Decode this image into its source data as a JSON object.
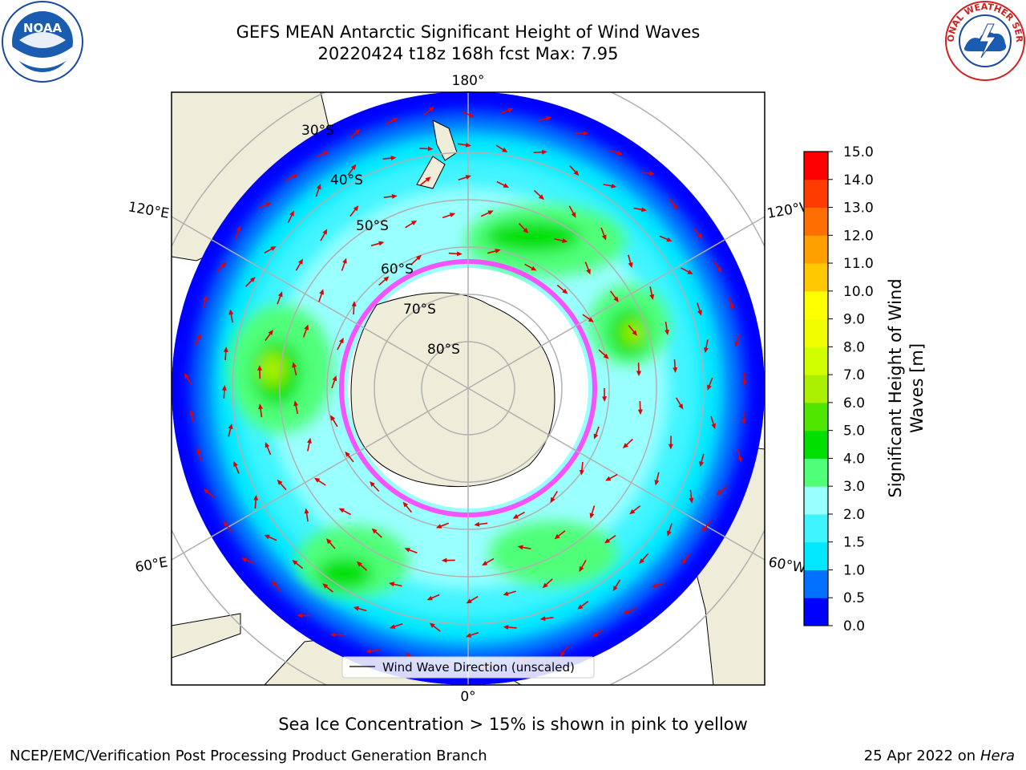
{
  "title_line1": "GEFS MEAN Antarctic Significant Height of Wind Waves",
  "title_line2": "20220424 t18z 168h fcst   Max: 7.95",
  "map": {
    "lon_labels": {
      "top": "180°",
      "bottom": "0°",
      "upper_left": "120°E",
      "upper_right": "120°W",
      "lower_left": "60°E",
      "lower_right": "60°W"
    },
    "lat_labels": [
      "30°S",
      "40°S",
      "50°S",
      "60°S",
      "70°S",
      "80°S"
    ],
    "legend_label": "Wind Wave Direction (unscaled)"
  },
  "colorbar": {
    "label_line1": "Significant Height of Wind",
    "label_line2": "Waves [m]",
    "ticks": [
      "0.0",
      "0.5",
      "1.0",
      "1.5",
      "2.0",
      "3.0",
      "4.0",
      "5.0",
      "6.0",
      "7.0",
      "8.0",
      "9.0",
      "10.0",
      "11.0",
      "12.0",
      "13.0",
      "14.0",
      "15.0"
    ],
    "colors": [
      "#0000ff",
      "#0070ff",
      "#00e8ff",
      "#40f4ff",
      "#99ffff",
      "#50ff78",
      "#00e000",
      "#50e600",
      "#aaf000",
      "#d2ff00",
      "#f0ff00",
      "#ffff00",
      "#ffc800",
      "#ffa000",
      "#ff6e00",
      "#ff3c00",
      "#ff0000"
    ]
  },
  "caption": "Sea Ice Concentration > 15% is shown in pink to yellow",
  "credit": "NCEP/EMC/Verification Post Processing Product Generation Branch",
  "date_text": "25 Apr 2022 on ",
  "date_host": "Hera",
  "logos": {
    "left": "NOAA",
    "right": "NATIONAL WEATHER SERVICE"
  }
}
